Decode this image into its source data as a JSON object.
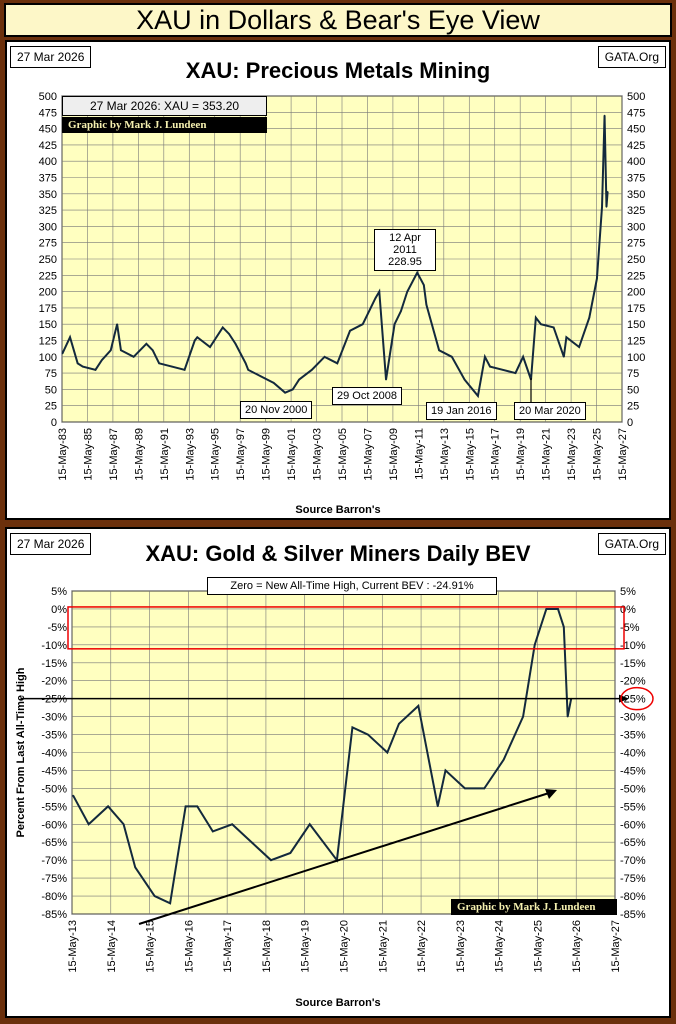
{
  "page_title": "XAU in Dollars & Bear's Eye View",
  "chart_data": [
    {
      "type": "line",
      "title": "XAU: Precious Metals Mining",
      "date": "27 Mar 2026",
      "site": "GATA.Org",
      "info": "27 Mar 2026: XAU = 353.20",
      "credit": "Graphic by Mark J. Lundeen",
      "source": "Source Barron's",
      "ylim": [
        0,
        500
      ],
      "yticks": [
        0,
        25,
        50,
        75,
        100,
        125,
        150,
        175,
        200,
        225,
        250,
        275,
        300,
        325,
        350,
        375,
        400,
        425,
        450,
        475,
        500
      ],
      "xlim": [
        1983.37,
        2027.37
      ],
      "xticks": [
        "15-May-83",
        "15-May-85",
        "15-May-87",
        "15-May-89",
        "15-May-91",
        "15-May-93",
        "15-May-95",
        "15-May-97",
        "15-May-99",
        "15-May-01",
        "15-May-03",
        "15-May-05",
        "15-May-07",
        "15-May-09",
        "15-May-11",
        "15-May-13",
        "15-May-15",
        "15-May-17",
        "15-May-19",
        "15-May-21",
        "15-May-23",
        "15-May-25",
        "15-May-27"
      ],
      "annotations": {
        "peak2011": [
          "12 Apr 2011",
          "228.95"
        ],
        "low2000": "20 Nov 2000",
        "low2008": "29 Oct 2008",
        "low2016": "19 Jan 2016",
        "low2020": "20 Mar 2020"
      },
      "x": [
        1983.4,
        1984,
        1984.6,
        1985,
        1986,
        1986.5,
        1987.2,
        1987.7,
        1988,
        1989,
        1990,
        1990.5,
        1991,
        1992,
        1993,
        1993.8,
        1994,
        1995,
        1996,
        1996.5,
        1997,
        1997.8,
        1998,
        1999,
        2000,
        2000.9,
        2001.5,
        2002,
        2003,
        2004,
        2005,
        2006,
        2007,
        2008,
        2008.3,
        2008.83,
        2009.5,
        2010,
        2010.5,
        2011.28,
        2011.8,
        2012,
        2013,
        2014,
        2015,
        2016.05,
        2016.6,
        2017,
        2018,
        2019,
        2019.6,
        2020.22,
        2020.6,
        2021,
        2022,
        2022.8,
        2023,
        2024,
        2024.8,
        2025.4,
        2025.8,
        2026.0,
        2026.15,
        2026.24
      ],
      "y": [
        105,
        130,
        90,
        85,
        80,
        95,
        110,
        150,
        110,
        100,
        120,
        110,
        90,
        85,
        80,
        125,
        130,
        115,
        145,
        135,
        120,
        90,
        80,
        70,
        60,
        45,
        50,
        65,
        80,
        100,
        90,
        140,
        150,
        190,
        200,
        65,
        150,
        170,
        200,
        229,
        210,
        180,
        110,
        100,
        65,
        40,
        100,
        85,
        80,
        75,
        100,
        65,
        160,
        150,
        145,
        100,
        130,
        115,
        160,
        220,
        330,
        470,
        330,
        353
      ]
    },
    {
      "type": "line",
      "title": "XAU: Gold & Silver Miners Daily BEV",
      "date": "27 Mar 2026",
      "site": "GATA.Org",
      "info": "Zero = New All-Time High, Current BEV :  -24.91%",
      "credit": "Graphic by Mark J. Lundeen",
      "source": "Source Barron's",
      "ylabel": "Percent  From  Last  All-Time  High",
      "highlight": "-25%",
      "ylim": [
        -85,
        5
      ],
      "yticks": [
        "5%",
        "0%",
        "-5%",
        "-10%",
        "-15%",
        "-20%",
        "-25%",
        "-30%",
        "-35%",
        "-40%",
        "-45%",
        "-50%",
        "-55%",
        "-60%",
        "-65%",
        "-70%",
        "-75%",
        "-80%",
        "-85%"
      ],
      "xlim": [
        2013.37,
        2027.37
      ],
      "xticks": [
        "15-May-13",
        "15-May-14",
        "15-May-15",
        "15-May-16",
        "15-May-17",
        "15-May-18",
        "15-May-19",
        "15-May-20",
        "15-May-21",
        "15-May-22",
        "15-May-23",
        "15-May-24",
        "15-May-25",
        "15-May-26",
        "15-May-27"
      ],
      "x": [
        2013.4,
        2013.8,
        2014.3,
        2014.7,
        2015,
        2015.5,
        2015.9,
        2016.3,
        2016.6,
        2017,
        2017.5,
        2018,
        2018.5,
        2019,
        2019.5,
        2020.2,
        2020.6,
        2021,
        2021.5,
        2021.8,
        2022.3,
        2022.8,
        2023,
        2023.5,
        2024,
        2024.5,
        2025,
        2025.3,
        2025.6,
        2025.9,
        2026.05,
        2026.15,
        2026.24
      ],
      "y": [
        -52,
        -60,
        -55,
        -60,
        -72,
        -80,
        -82,
        -55,
        -55,
        -62,
        -60,
        -65,
        -70,
        -68,
        -60,
        -70,
        -33,
        -35,
        -40,
        -32,
        -27,
        -55,
        -45,
        -50,
        -50,
        -42,
        -30,
        -10,
        0,
        0,
        -5,
        -30,
        -25
      ]
    }
  ]
}
